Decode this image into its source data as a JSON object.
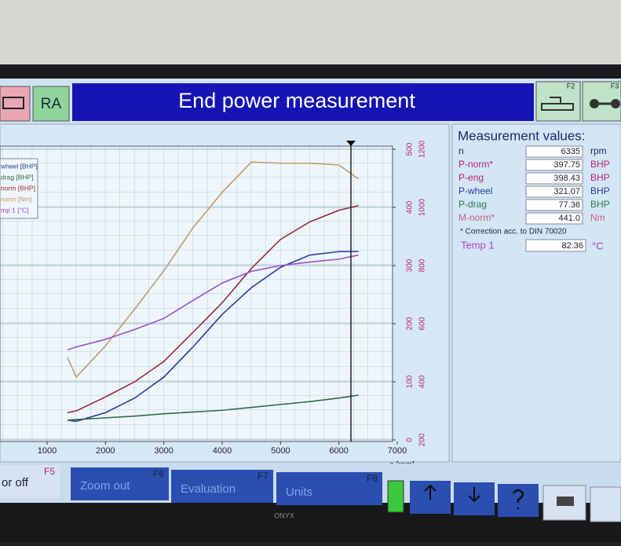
{
  "header": {
    "left_button": "RA",
    "title": "End power measurement",
    "f2": "F2",
    "f3": "F3"
  },
  "chart": {
    "type": "line",
    "x": [
      1350,
      1500,
      2000,
      2500,
      3000,
      3500,
      4000,
      4500,
      5000,
      5500,
      6000,
      6335
    ],
    "series": [
      {
        "name": "wheel [BHP]",
        "color": "#2b3e9b",
        "values": [
          34,
          32,
          47,
          72,
          108,
          160,
          216,
          262,
          297,
          318,
          324,
          324
        ]
      },
      {
        "name": "drag [BHP]",
        "color": "#2e6b4a",
        "values": [
          34,
          35,
          38,
          41,
          45,
          48,
          51,
          56,
          61,
          66,
          72,
          77
        ]
      },
      {
        "name": "norm [BHP]",
        "color": "#9b2c3c",
        "values": [
          47,
          50,
          74,
          100,
          135,
          185,
          236,
          295,
          345,
          375,
          395,
          403
        ]
      },
      {
        "name": "norm [Nm]",
        "color": "#c49a6c",
        "values": [
          142,
          108,
          162,
          225,
          291,
          365,
          426,
          478,
          476,
          476,
          473,
          449
        ]
      },
      {
        "name": "mp 1 [°C]",
        "color": "#9b4fc9",
        "values": [
          155,
          160,
          173,
          190,
          209,
          240,
          270,
          290,
          300,
          306,
          311,
          318
        ]
      }
    ],
    "xlim": [
      1000,
      7000
    ],
    "xticks": [
      1000,
      2000,
      3000,
      4000,
      5000,
      6000,
      7000
    ],
    "x_label": "n [rpm]",
    "ylim": [
      0,
      500
    ],
    "yticks": [
      0,
      100,
      200,
      300,
      400,
      500
    ],
    "y2lim": [
      200,
      1200
    ],
    "y2ticks": [
      200,
      400,
      600,
      800,
      1000,
      1200
    ]
  },
  "measurements": {
    "title": "Measurement values:",
    "rows": [
      {
        "name": "n",
        "value": "6335",
        "unit": "rpm",
        "color": "#1a2a6a"
      },
      {
        "name": "P-norm*",
        "value": "397.75",
        "unit": "BHP",
        "color": "#c0207a"
      },
      {
        "name": "P-eng",
        "value": "398.43",
        "unit": "BHP",
        "color": "#c0207a"
      },
      {
        "name": "P-wheel",
        "value": "321.07",
        "unit": "BHP",
        "color": "#2a3aa0"
      },
      {
        "name": "P-drag",
        "value": "77.36",
        "unit": "BHP",
        "color": "#2e7a4a"
      },
      {
        "name": "M-norm*",
        "value": "441.0",
        "unit": "Nm",
        "color": "#d06070"
      }
    ],
    "note": "* Correction acc. to DIN 70020",
    "temp": {
      "name": "Temp 1",
      "value": "82.36",
      "unit": "°C"
    }
  },
  "toolbar": {
    "items": [
      {
        "label": "or off",
        "key": "F5"
      },
      {
        "label": "Zoom out",
        "key": "F6"
      },
      {
        "label": "Evaluation",
        "key": "F7"
      },
      {
        "label": "Units",
        "key": "F8"
      }
    ]
  },
  "bezel_brand": "ONYX"
}
